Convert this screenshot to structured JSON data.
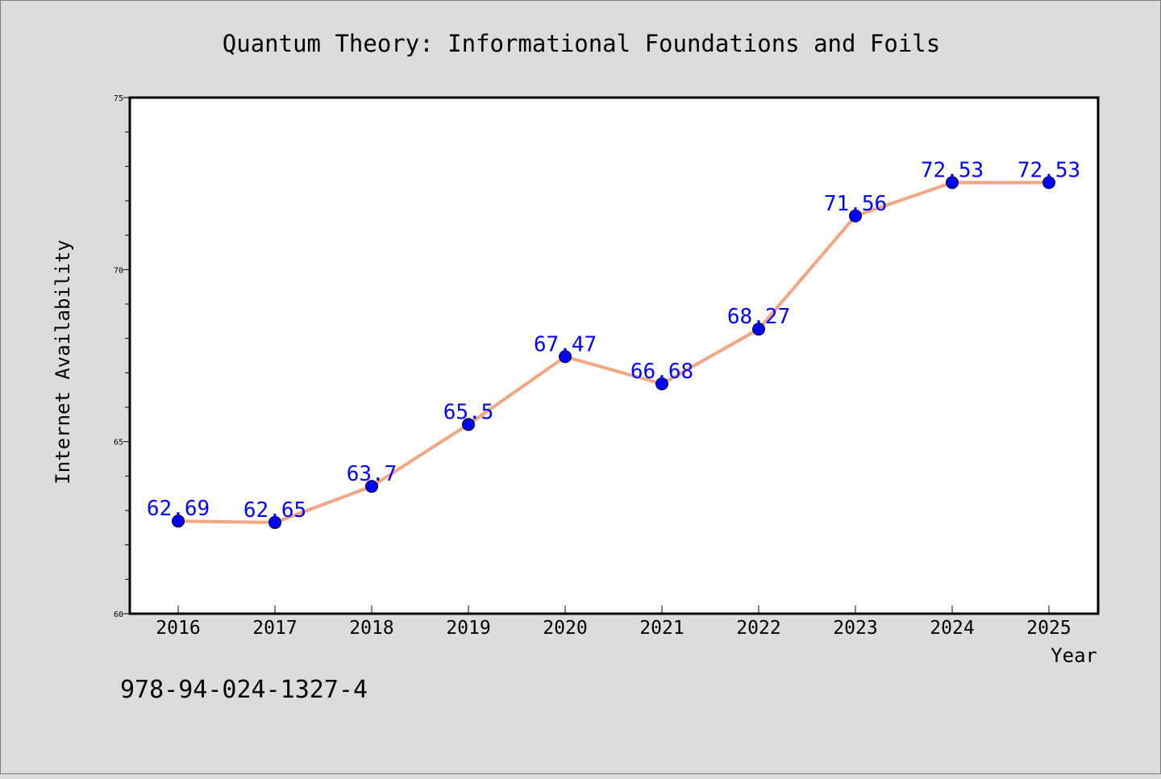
{
  "chart_data": {
    "type": "line",
    "title": "Quantum Theory: Informational Foundations and Foils",
    "xlabel": "Year",
    "ylabel": "Internet Availability",
    "ylim": [
      60,
      75
    ],
    "yticks": [
      60,
      65,
      70,
      75
    ],
    "categories": [
      "2016",
      "2017",
      "2018",
      "2019",
      "2020",
      "2021",
      "2022",
      "2023",
      "2024",
      "2025"
    ],
    "values": [
      62.69,
      62.65,
      63.7,
      65.5,
      67.47,
      66.68,
      68.27,
      71.56,
      72.53,
      72.53
    ],
    "value_labels": [
      "62.69",
      "62.65",
      "63.7",
      "65.5",
      "67.47",
      "66.68",
      "68.27",
      "71.56",
      "72.53",
      "72.53"
    ],
    "line_color": "#f4a582",
    "marker_color": "#0000ff",
    "label_color": "#0000ff",
    "grid": false
  },
  "annotation": "978-94-024-1327-4"
}
